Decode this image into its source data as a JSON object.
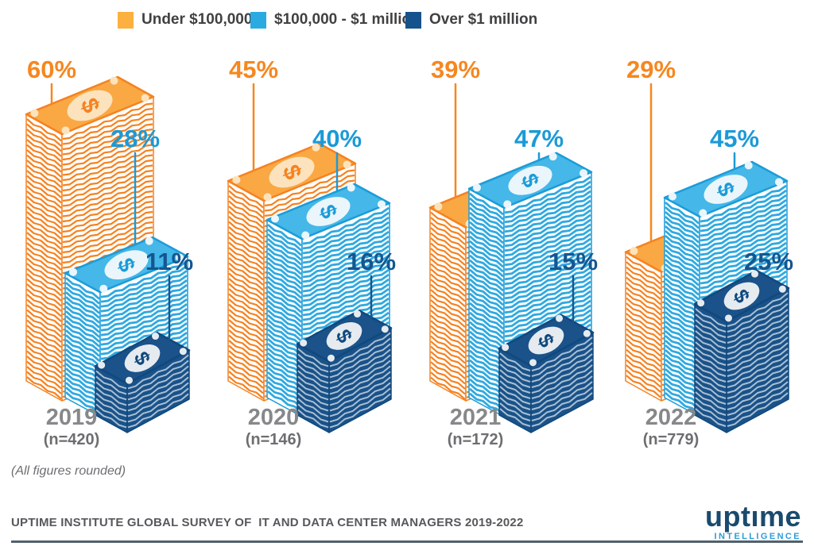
{
  "chart_data": {
    "type": "bar",
    "title": "",
    "unit": "%",
    "categories": [
      "2019",
      "2020",
      "2021",
      "2022"
    ],
    "sample_sizes": [
      "(n=420)",
      "(n=146)",
      "(n=172)",
      "(n=779)"
    ],
    "series": [
      {
        "name": "Under $100,000",
        "key": "under-100k",
        "values": [
          60,
          45,
          39,
          29
        ],
        "legend_color": "#FBB03F",
        "fill": "#FAA843",
        "edge": "#F58220",
        "label_color": "#F6871F",
        "accent": "#FCE3BD",
        "stripe_bg": "#FFFFFF",
        "stripe": "#F58220"
      },
      {
        "name": "$100,000 - $1 million",
        "key": "100k-1m",
        "values": [
          28,
          40,
          47,
          45
        ],
        "legend_color": "#29ABE2",
        "fill": "#45B7E8",
        "edge": "#1B9CD8",
        "label_color": "#1B9AD7",
        "accent": "#EAF6FC",
        "stripe_bg": "#FFFFFF",
        "stripe": "#2FA9E0"
      },
      {
        "name": "Over $1 million",
        "key": "over-1m",
        "values": [
          11,
          16,
          15,
          25
        ],
        "legend_color": "#16538C",
        "fill": "#1A5289",
        "edge": "#10497E",
        "label_color": "#15568F",
        "accent": "#E6EBF0",
        "stripe_bg": "#1A5289",
        "stripe": "#A9C0D4"
      }
    ],
    "note": "(All figures rounded)",
    "legend_position": "top",
    "grid": false,
    "year_label_color": "#87888A",
    "sample_label_color": "#6D6E70",
    "dollar_glyph": "$"
  },
  "footer": {
    "source": "UPTIME INSTITUTE GLOBAL SURVEY OF  IT AND DATA CENTER MANAGERS 2019-2022",
    "logo_primary": "uptıme",
    "logo_secondary": "INTELLIGENCE"
  }
}
